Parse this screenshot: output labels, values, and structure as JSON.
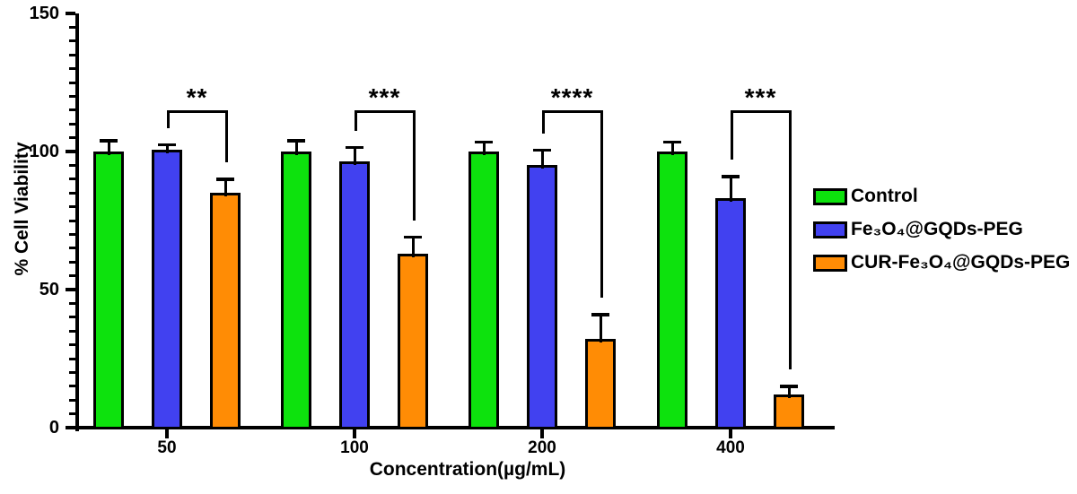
{
  "chart_data": {
    "type": "bar",
    "title": "",
    "xlabel": "Concentration(µg/mL)",
    "ylabel": "% Cell Viability",
    "categories": [
      "50",
      "100",
      "200",
      "400"
    ],
    "series": [
      {
        "name": "Control",
        "color": "#0DE20D",
        "values": [
          100,
          100,
          100,
          100
        ],
        "errors": [
          4,
          4,
          3.5,
          3.5
        ]
      },
      {
        "name": "Fe₃O₄@GQDs-PEG",
        "color": "#4141F0",
        "values": [
          100.5,
          96.5,
          95,
          83
        ],
        "errors": [
          2,
          5,
          5.5,
          8
        ]
      },
      {
        "name": "CUR-Fe₃O₄@GQDs-PEG",
        "color": "#FF8C05",
        "values": [
          85,
          63,
          32,
          12
        ],
        "errors": [
          5,
          6,
          9,
          3
        ]
      }
    ],
    "significance": [
      {
        "category": "50",
        "label": "**",
        "between": [
          "Fe₃O₄@GQDs-PEG",
          "CUR-Fe₃O₄@GQDs-PEG"
        ]
      },
      {
        "category": "100",
        "label": "***",
        "between": [
          "Fe₃O₄@GQDs-PEG",
          "CUR-Fe₃O₄@GQDs-PEG"
        ]
      },
      {
        "category": "200",
        "label": "****",
        "between": [
          "Fe₃O₄@GQDs-PEG",
          "CUR-Fe₃O₄@GQDs-PEG"
        ]
      },
      {
        "category": "400",
        "label": "***",
        "between": [
          "Fe₃O₄@GQDs-PEG",
          "CUR-Fe₃O₄@GQDs-PEG"
        ]
      }
    ],
    "ylim": [
      0,
      150
    ],
    "yticks": [
      0,
      50,
      100,
      150
    ],
    "minor_tick_step": 5,
    "error_bars": "upper, SD",
    "grid": false,
    "legend_position": "right",
    "axis_color": "#000000",
    "background_color": "#ffffff"
  }
}
